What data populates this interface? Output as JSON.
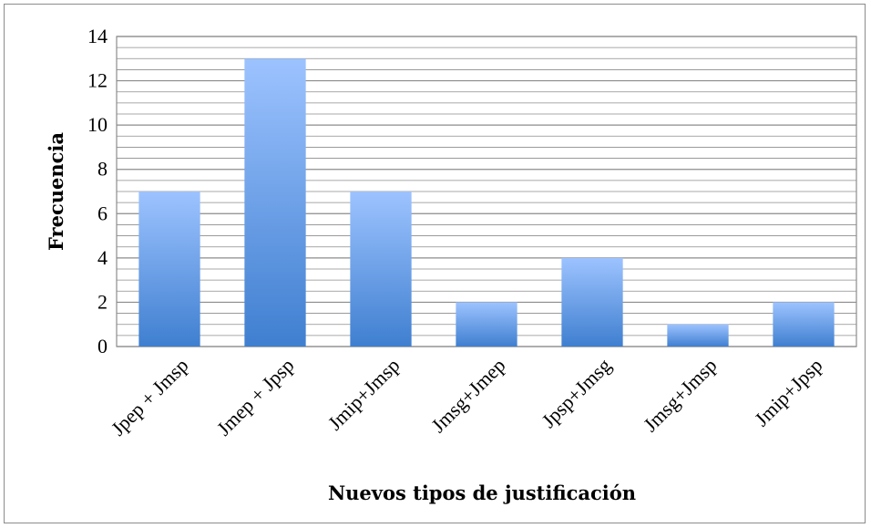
{
  "chart_data": {
    "type": "bar",
    "categories": [
      "Jpep + Jmsp",
      "Jmep + Jpsp",
      "Jmip+Jmsp",
      "Jmsg+Jmep",
      "Jpsp+Jmsg",
      "Jmsg+Jmsp",
      "Jmip+Jpsp"
    ],
    "values": [
      7,
      13,
      7,
      2,
      4,
      1,
      2
    ],
    "xlabel": "Nuevos tipos de justificación",
    "ylabel": "Frecuencia",
    "ylim": [
      0,
      14
    ],
    "yticks": [
      0,
      2,
      4,
      6,
      8,
      10,
      12,
      14
    ],
    "grid": true,
    "legend": "none",
    "colors": {
      "bar_top": "#9dc3ff",
      "bar_bottom": "#3f7fd0",
      "grid": "#8c8c8c"
    }
  }
}
